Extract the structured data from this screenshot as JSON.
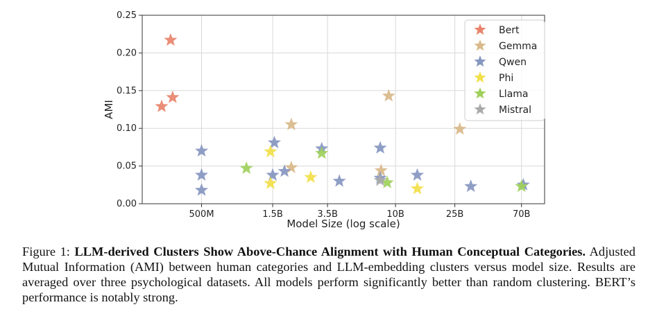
{
  "chart_data": {
    "type": "scatter",
    "marker": "star",
    "xlabel": "Model Size (log scale)",
    "ylabel": "AMI",
    "x_scale": "log",
    "xticks": [
      {
        "value": 0.5,
        "label": "500M"
      },
      {
        "value": 1.5,
        "label": "1.5B"
      },
      {
        "value": 3.5,
        "label": "3.5B"
      },
      {
        "value": 10,
        "label": "10B"
      },
      {
        "value": 25,
        "label": "25B"
      },
      {
        "value": 70,
        "label": "70B"
      }
    ],
    "xlim": [
      0.2,
      100
    ],
    "ylim": [
      0,
      0.25
    ],
    "yticks": [
      {
        "value": 0.0,
        "label": "0.00"
      },
      {
        "value": 0.05,
        "label": "0.05"
      },
      {
        "value": 0.1,
        "label": "0.10"
      },
      {
        "value": 0.15,
        "label": "0.15"
      },
      {
        "value": 0.2,
        "label": "0.20"
      },
      {
        "value": 0.25,
        "label": "0.25"
      }
    ],
    "grid": true,
    "legend_position": "top-right",
    "series": [
      {
        "name": "Bert",
        "color": "#e8846b",
        "points": [
          [
            0.27,
            0.129
          ],
          [
            0.31,
            0.217
          ],
          [
            0.32,
            0.141
          ]
        ]
      },
      {
        "name": "Gemma",
        "color": "#d9b98a",
        "points": [
          [
            2.0,
            0.105
          ],
          [
            2.0,
            0.048
          ],
          [
            8.0,
            0.044
          ],
          [
            9.0,
            0.143
          ],
          [
            27.0,
            0.099
          ]
        ]
      },
      {
        "name": "Qwen",
        "color": "#8596c0",
        "points": [
          [
            0.5,
            0.07
          ],
          [
            0.5,
            0.038
          ],
          [
            0.5,
            0.018
          ],
          [
            1.5,
            0.038
          ],
          [
            1.54,
            0.081
          ],
          [
            1.8,
            0.043
          ],
          [
            3.2,
            0.073
          ],
          [
            4.2,
            0.03
          ],
          [
            7.9,
            0.074
          ],
          [
            7.9,
            0.034
          ],
          [
            14.0,
            0.038
          ],
          [
            32.0,
            0.023
          ],
          [
            72.0,
            0.025
          ]
        ]
      },
      {
        "name": "Phi",
        "color": "#f2e04a",
        "points": [
          [
            1.45,
            0.069
          ],
          [
            1.45,
            0.027
          ],
          [
            2.7,
            0.035
          ],
          [
            14.0,
            0.02
          ]
        ]
      },
      {
        "name": "Llama",
        "color": "#9ed05a",
        "points": [
          [
            1.0,
            0.047
          ],
          [
            3.2,
            0.067
          ],
          [
            8.8,
            0.028
          ],
          [
            70.0,
            0.023
          ]
        ]
      },
      {
        "name": "Mistral",
        "color": "#aaaaaa",
        "points": [
          [
            7.9,
            0.031
          ]
        ]
      }
    ]
  },
  "caption": {
    "prefix": "Figure 1: ",
    "bold_title": "LLM-derived Clusters Show Above-Chance Alignment with Human Conceptual Categories.",
    "body": " Adjusted Mutual Information (AMI) between human categories and LLM-embedding clusters versus model size.  Results are averaged over three psychological datasets.  All models perform significantly better than random clustering. BERT’s performance is notably strong."
  }
}
